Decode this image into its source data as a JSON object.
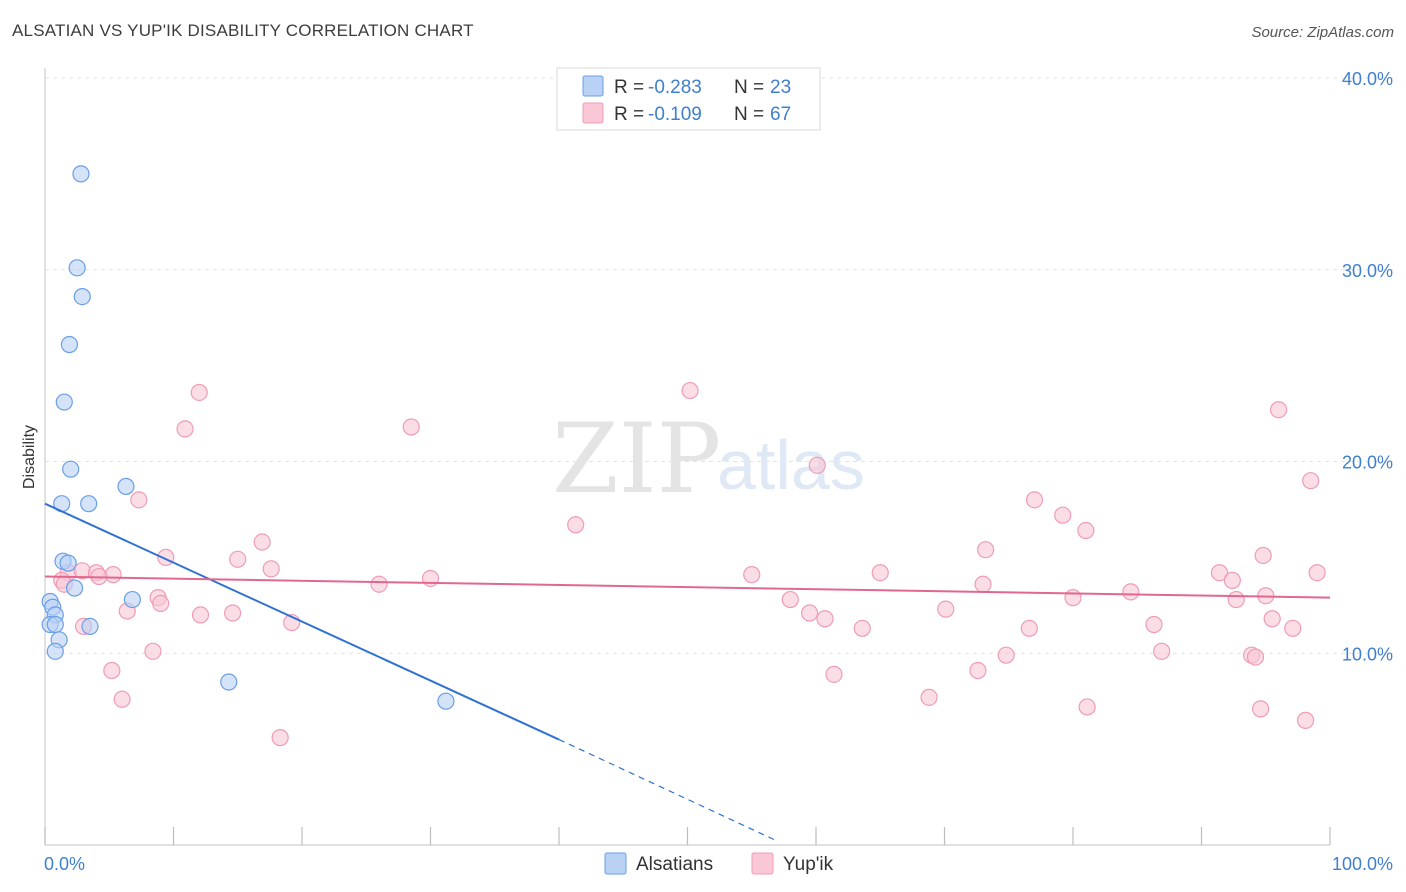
{
  "title": "ALSATIAN VS YUP'IK DISABILITY CORRELATION CHART",
  "source": "Source: ZipAtlas.com",
  "watermark": {
    "part1": "ZIP",
    "part2": "atlas"
  },
  "legend": {
    "rows": [
      {
        "r_label": "R = ",
        "r_value": "-0.283",
        "n_label": "N = ",
        "n_value": "23"
      },
      {
        "r_label": "R = ",
        "r_value": "-0.109",
        "n_label": "N = ",
        "n_value": "67"
      }
    ]
  },
  "bottom_legend": {
    "series1": "Alsatians",
    "series2": "Yup'ik"
  },
  "colors": {
    "alsatians_fill": "#b9d1f5",
    "alsatians_stroke": "#6a9ee6",
    "alsatians_line": "#2f72d3",
    "yupik_fill": "#f9c7d6",
    "yupik_stroke": "#ef9cb6",
    "yupik_line": "#e2678f",
    "tick_text": "#3f7fd0",
    "grid": "#e3e3e3"
  },
  "chart_data": {
    "type": "scatter",
    "title": "ALSATIAN VS YUP'IK DISABILITY CORRELATION CHART",
    "ylabel": "Disability",
    "xlabel": "",
    "xlim": [
      0,
      100
    ],
    "ylim": [
      0,
      40
    ],
    "x_tick_labels": [
      "0.0%",
      "100.0%"
    ],
    "y_ticks": [
      10,
      20,
      30,
      40
    ],
    "y_tick_labels": [
      "10.0%",
      "20.0%",
      "30.0%",
      "40.0%"
    ],
    "grid": true,
    "series": [
      {
        "name": "Alsatians",
        "points": [
          [
            2.8,
            35.0
          ],
          [
            2.5,
            30.1
          ],
          [
            2.9,
            28.6
          ],
          [
            1.9,
            26.1
          ],
          [
            1.5,
            23.1
          ],
          [
            2.0,
            19.6
          ],
          [
            6.3,
            18.7
          ],
          [
            1.3,
            17.8
          ],
          [
            3.4,
            17.8
          ],
          [
            1.4,
            14.8
          ],
          [
            1.8,
            14.7
          ],
          [
            2.3,
            13.4
          ],
          [
            0.4,
            12.7
          ],
          [
            6.8,
            12.8
          ],
          [
            0.6,
            12.4
          ],
          [
            0.8,
            12.0
          ],
          [
            0.4,
            11.5
          ],
          [
            0.8,
            11.5
          ],
          [
            3.5,
            11.4
          ],
          [
            1.1,
            10.7
          ],
          [
            0.8,
            10.1
          ],
          [
            14.3,
            8.5
          ],
          [
            31.2,
            7.5
          ]
        ],
        "trend": {
          "x0": 0,
          "y0": 17.8,
          "x1": 40,
          "y1": 5.5,
          "dashed_to_x": 57,
          "dashed_to_y": 0.2
        }
      },
      {
        "name": "Yup'ik",
        "points": [
          [
            12.0,
            23.6
          ],
          [
            10.9,
            21.7
          ],
          [
            28.5,
            21.8
          ],
          [
            50.2,
            23.7
          ],
          [
            96.0,
            22.7
          ],
          [
            60.1,
            19.8
          ],
          [
            7.3,
            18.0
          ],
          [
            41.3,
            16.7
          ],
          [
            77.0,
            18.0
          ],
          [
            79.2,
            17.2
          ],
          [
            81.0,
            16.4
          ],
          [
            98.5,
            19.0
          ],
          [
            16.9,
            15.8
          ],
          [
            9.4,
            15.0
          ],
          [
            15.0,
            14.9
          ],
          [
            73.2,
            15.4
          ],
          [
            94.8,
            15.1
          ],
          [
            17.6,
            14.4
          ],
          [
            1.8,
            14.2
          ],
          [
            2.9,
            14.3
          ],
          [
            4.0,
            14.2
          ],
          [
            5.3,
            14.1
          ],
          [
            1.3,
            13.8
          ],
          [
            1.5,
            13.6
          ],
          [
            4.2,
            14.0
          ],
          [
            26.0,
            13.6
          ],
          [
            55.0,
            14.1
          ],
          [
            65.0,
            14.2
          ],
          [
            73.0,
            13.6
          ],
          [
            91.4,
            14.2
          ],
          [
            92.4,
            13.8
          ],
          [
            99.0,
            14.2
          ],
          [
            8.8,
            12.9
          ],
          [
            58.0,
            12.8
          ],
          [
            80.0,
            12.9
          ],
          [
            84.5,
            13.2
          ],
          [
            92.7,
            12.8
          ],
          [
            95.0,
            13.0
          ],
          [
            6.4,
            12.2
          ],
          [
            12.1,
            12.0
          ],
          [
            14.6,
            12.1
          ],
          [
            59.5,
            12.1
          ],
          [
            70.1,
            12.3
          ],
          [
            95.5,
            11.8
          ],
          [
            3.0,
            11.4
          ],
          [
            19.2,
            11.6
          ],
          [
            60.7,
            11.8
          ],
          [
            63.6,
            11.3
          ],
          [
            76.6,
            11.3
          ],
          [
            86.3,
            11.5
          ],
          [
            97.1,
            11.3
          ],
          [
            8.4,
            10.1
          ],
          [
            74.8,
            9.9
          ],
          [
            86.9,
            10.1
          ],
          [
            93.9,
            9.9
          ],
          [
            94.2,
            9.8
          ],
          [
            5.2,
            9.1
          ],
          [
            61.4,
            8.9
          ],
          [
            72.6,
            9.1
          ],
          [
            6.0,
            7.6
          ],
          [
            68.8,
            7.7
          ],
          [
            81.1,
            7.2
          ],
          [
            94.6,
            7.1
          ],
          [
            98.1,
            6.5
          ],
          [
            18.3,
            5.6
          ],
          [
            9.0,
            12.6
          ],
          [
            30.0,
            13.9
          ]
        ],
        "trend": {
          "x0": 0,
          "y0": 14.0,
          "x1": 100,
          "y1": 12.9
        }
      }
    ]
  }
}
